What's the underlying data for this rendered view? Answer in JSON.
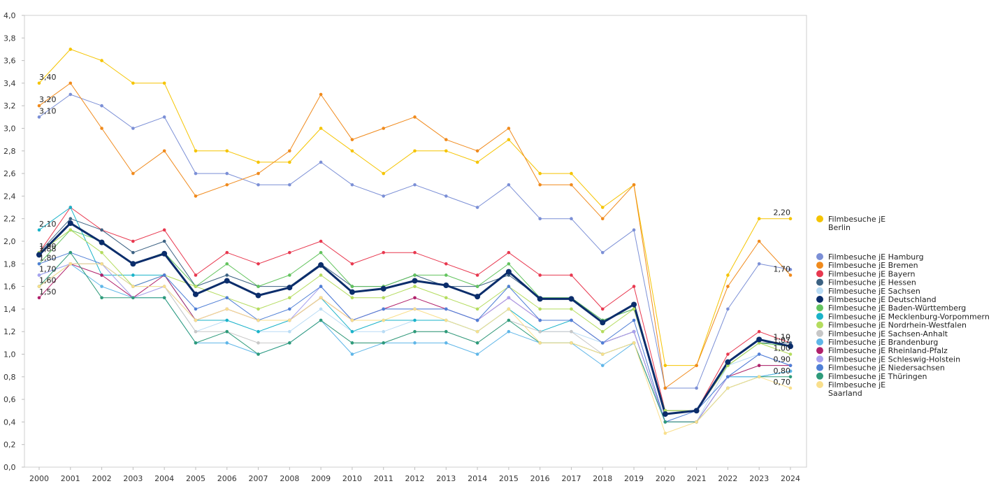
{
  "chart_data": {
    "type": "line",
    "title": "",
    "xlabel": "",
    "ylabel": "",
    "ylim": [
      0,
      4.0
    ],
    "y_ticks": [
      "0,0",
      "0,2",
      "0,4",
      "0,6",
      "0,8",
      "1,0",
      "1,2",
      "1,4",
      "1,6",
      "1,8",
      "2,0",
      "2,2",
      "2,4",
      "2,6",
      "2,8",
      "3,0",
      "3,2",
      "3,4",
      "3,6",
      "3,8",
      "4,0"
    ],
    "categories": [
      "2000",
      "2001",
      "2002",
      "2003",
      "2004",
      "2005",
      "2006",
      "2007",
      "2008",
      "2009",
      "2010",
      "2011",
      "2012",
      "2013",
      "2014",
      "2015",
      "2016",
      "2017",
      "2018",
      "2019",
      "2020",
      "2021",
      "2022",
      "2023",
      "2024"
    ],
    "grid": false,
    "legend_position": "right",
    "series": [
      {
        "name": "Filmbesuche jE Berlin",
        "legend_lines": [
          "Filmbesuche jE",
          "Berlin"
        ],
        "color": "#f5c400",
        "values": [
          3.4,
          3.7,
          3.6,
          3.4,
          3.4,
          2.8,
          2.8,
          2.7,
          2.7,
          3.0,
          2.8,
          2.6,
          2.8,
          2.8,
          2.7,
          2.9,
          2.6,
          2.6,
          2.3,
          2.5,
          0.9,
          0.9,
          1.7,
          2.2,
          2.2
        ]
      },
      {
        "name": "Filmbesuche jE Hamburg",
        "color": "#7b8fd6",
        "values": [
          3.1,
          3.3,
          3.2,
          3.0,
          3.1,
          2.6,
          2.6,
          2.5,
          2.5,
          2.7,
          2.5,
          2.4,
          2.5,
          2.4,
          2.3,
          2.5,
          2.2,
          2.2,
          1.9,
          2.1,
          0.7,
          0.7,
          1.4,
          1.8,
          1.75
        ]
      },
      {
        "name": "Filmbesuche jE Bremen",
        "color": "#f08a1c",
        "values": [
          3.2,
          3.4,
          3.0,
          2.6,
          2.8,
          2.4,
          2.5,
          2.6,
          2.8,
          3.3,
          2.9,
          3.0,
          3.1,
          2.9,
          2.8,
          3.0,
          2.5,
          2.5,
          2.2,
          2.5,
          0.7,
          0.9,
          1.6,
          2.0,
          1.7
        ]
      },
      {
        "name": "Filmbesuche jE Bayern",
        "color": "#e8384f",
        "values": [
          1.9,
          2.3,
          2.1,
          2.0,
          2.1,
          1.7,
          1.9,
          1.8,
          1.9,
          2.0,
          1.8,
          1.9,
          1.9,
          1.8,
          1.7,
          1.9,
          1.7,
          1.7,
          1.4,
          1.6,
          0.5,
          0.5,
          1.0,
          1.2,
          1.1
        ]
      },
      {
        "name": "Filmbesuche jE Hessen",
        "color": "#3b6182",
        "values": [
          1.9,
          2.2,
          2.1,
          1.9,
          2.0,
          1.6,
          1.7,
          1.6,
          1.6,
          1.8,
          1.6,
          1.6,
          1.7,
          1.6,
          1.6,
          1.7,
          1.5,
          1.5,
          1.3,
          1.4,
          0.5,
          0.5,
          0.9,
          1.1,
          1.1
        ]
      },
      {
        "name": "Filmbesuche jE Sachsen",
        "color": "#b9dcf5",
        "values": [
          1.6,
          1.8,
          1.8,
          1.6,
          1.6,
          1.2,
          1.3,
          1.2,
          1.2,
          1.4,
          1.2,
          1.2,
          1.3,
          1.3,
          1.2,
          1.4,
          1.2,
          1.2,
          1.1,
          1.2,
          0.4,
          0.4,
          0.9,
          1.0,
          0.9
        ]
      },
      {
        "name": "Filmbesuche jE Deutschland",
        "color": "#0b2d6b",
        "width": 3,
        "values": [
          1.88,
          2.16,
          1.99,
          1.8,
          1.89,
          1.53,
          1.65,
          1.52,
          1.59,
          1.79,
          1.55,
          1.58,
          1.65,
          1.61,
          1.51,
          1.73,
          1.49,
          1.49,
          1.28,
          1.44,
          0.47,
          0.5,
          0.93,
          1.13,
          1.07
        ]
      },
      {
        "name": "Filmbesuche jE Baden-Württemberg",
        "color": "#63c45e",
        "values": [
          1.8,
          2.1,
          2.0,
          1.8,
          1.9,
          1.6,
          1.8,
          1.6,
          1.7,
          1.9,
          1.6,
          1.6,
          1.7,
          1.7,
          1.6,
          1.8,
          1.5,
          1.5,
          1.3,
          1.4,
          0.5,
          0.5,
          0.9,
          1.1,
          1.07
        ]
      },
      {
        "name": "Filmbesuche jE Mecklenburg-Vorpommern",
        "color": "#1ab3c9",
        "values": [
          2.1,
          2.3,
          1.7,
          1.7,
          1.7,
          1.3,
          1.3,
          1.2,
          1.3,
          1.5,
          1.2,
          1.3,
          1.3,
          1.3,
          1.2,
          1.4,
          1.2,
          1.3,
          1.1,
          1.2,
          0.4,
          0.4,
          0.8,
          0.8,
          0.85
        ]
      },
      {
        "name": "Filmbesuche jE Nordrhein-Westfalen",
        "color": "#b4dc5e",
        "values": [
          1.9,
          2.1,
          1.9,
          1.6,
          1.7,
          1.6,
          1.5,
          1.4,
          1.5,
          1.7,
          1.5,
          1.5,
          1.6,
          1.5,
          1.4,
          1.6,
          1.4,
          1.4,
          1.2,
          1.4,
          0.5,
          0.5,
          0.9,
          1.1,
          1.0
        ]
      },
      {
        "name": "Filmbesuche jE Sachsen-Anhalt",
        "color": "#c7c7c7",
        "values": [
          1.6,
          1.8,
          1.8,
          1.5,
          1.6,
          1.2,
          1.2,
          1.1,
          1.1,
          1.3,
          1.1,
          1.1,
          1.2,
          1.2,
          1.1,
          1.3,
          1.2,
          1.2,
          1.0,
          1.1,
          0.4,
          0.4,
          0.8,
          0.9,
          0.9
        ]
      },
      {
        "name": "Filmbesuche jE Brandenburg",
        "color": "#5fb6e8",
        "values": [
          1.7,
          1.8,
          1.6,
          1.5,
          1.5,
          1.1,
          1.1,
          1.0,
          1.1,
          1.3,
          1.0,
          1.1,
          1.1,
          1.1,
          1.0,
          1.2,
          1.1,
          1.1,
          0.9,
          1.1,
          0.4,
          0.4,
          0.8,
          0.8,
          0.85
        ]
      },
      {
        "name": "Filmbesuche jE Rheinland-Pfalz",
        "color": "#b0206b",
        "values": [
          1.5,
          1.8,
          1.7,
          1.5,
          1.7,
          1.3,
          1.4,
          1.3,
          1.3,
          1.5,
          1.3,
          1.4,
          1.5,
          1.4,
          1.3,
          1.5,
          1.3,
          1.3,
          1.1,
          1.2,
          0.4,
          0.4,
          0.8,
          0.9,
          0.9
        ]
      },
      {
        "name": "Filmbesuche jE Schleswig-Holstein",
        "color": "#a8a2ef",
        "values": [
          1.7,
          1.8,
          1.8,
          1.5,
          1.6,
          1.3,
          1.4,
          1.3,
          1.3,
          1.6,
          1.3,
          1.4,
          1.4,
          1.4,
          1.3,
          1.5,
          1.3,
          1.3,
          1.1,
          1.2,
          0.4,
          0.4,
          0.8,
          1.0,
          0.9
        ]
      },
      {
        "name": "Filmbesuche jE Niedersachsen",
        "color": "#4f7fd6",
        "values": [
          1.8,
          1.9,
          1.8,
          1.6,
          1.7,
          1.4,
          1.5,
          1.3,
          1.4,
          1.6,
          1.3,
          1.4,
          1.4,
          1.4,
          1.3,
          1.6,
          1.3,
          1.3,
          1.1,
          1.3,
          0.4,
          0.5,
          0.8,
          1.0,
          0.9
        ]
      },
      {
        "name": "Filmbesuche jE Thüringen",
        "color": "#2e9b7a",
        "values": [
          1.6,
          1.9,
          1.5,
          1.5,
          1.5,
          1.1,
          1.2,
          1.0,
          1.1,
          1.3,
          1.1,
          1.1,
          1.2,
          1.2,
          1.1,
          1.3,
          1.1,
          1.1,
          1.0,
          1.1,
          0.4,
          0.4,
          0.7,
          0.8,
          0.8
        ]
      },
      {
        "name": "Filmbesuche jE Saarland",
        "legend_lines": [
          "Filmbesuche jE",
          "Saarland"
        ],
        "color": "#f9df8c",
        "values": [
          1.6,
          1.8,
          1.8,
          1.6,
          1.6,
          1.3,
          1.4,
          1.3,
          1.3,
          1.5,
          1.3,
          1.3,
          1.4,
          1.3,
          1.2,
          1.4,
          1.1,
          1.1,
          1.0,
          1.1,
          0.3,
          0.4,
          0.7,
          0.8,
          0.7
        ]
      }
    ],
    "start_labels": [
      {
        "text": "3,40",
        "series": 0
      },
      {
        "text": "3,20",
        "series": 2
      },
      {
        "text": "3,10",
        "series": 1
      },
      {
        "text": "2,10",
        "series": 8
      },
      {
        "text": "1,90",
        "series": 3
      },
      {
        "text": "1,88",
        "series": 6
      },
      {
        "text": "1,80",
        "series": 7
      },
      {
        "text": "1,70",
        "series": 11
      },
      {
        "text": "1,60",
        "series": 5
      },
      {
        "text": "1,50",
        "series": 12
      }
    ],
    "end_labels": [
      {
        "text": "2,20",
        "series": 0
      },
      {
        "text": "1,70",
        "series": 2
      },
      {
        "text": "1,10",
        "series": 3
      },
      {
        "text": "1,07",
        "series": 6
      },
      {
        "text": "1,00",
        "series": 9
      },
      {
        "text": "0,90",
        "series": 10
      },
      {
        "text": "0,80",
        "series": 15
      },
      {
        "text": "0,70",
        "series": 16
      }
    ]
  }
}
